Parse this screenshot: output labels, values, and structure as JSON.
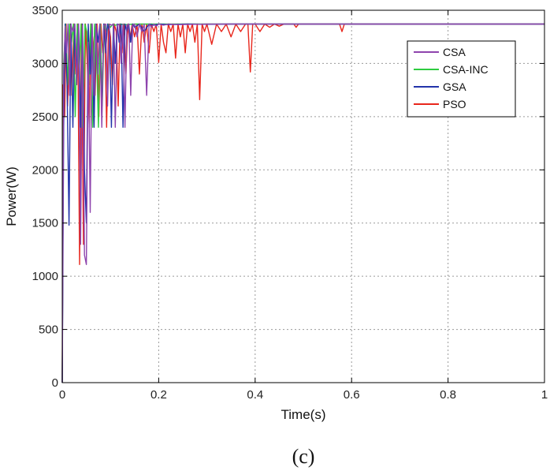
{
  "colors": {
    "CSA": "#8e44ad",
    "CSA-INC": "#2ecc40",
    "GSA": "#2233aa",
    "PSO": "#e8261c",
    "grid": "#9a9a9a",
    "axis": "#000000"
  },
  "chart_data": {
    "type": "line",
    "title": "",
    "xlabel": "Time(s)",
    "ylabel": "Power(W)",
    "caption": "(c)",
    "xlim": [
      0,
      1
    ],
    "ylim": [
      0,
      3500
    ],
    "xticks": [
      0,
      0.2,
      0.4,
      0.6,
      0.8,
      1
    ],
    "xtick_labels": [
      "0",
      "0.2",
      "0.4",
      "0.6",
      "0.8",
      "1"
    ],
    "yticks": [
      0,
      500,
      1000,
      1500,
      2000,
      2500,
      3000,
      3500
    ],
    "ytick_labels": [
      "0",
      "500",
      "1000",
      "1500",
      "2000",
      "2500",
      "3000",
      "3500"
    ],
    "grid": true,
    "legend_position": "top-right",
    "series": [
      {
        "name": "CSA",
        "x": [
          0,
          0.003,
          0.006,
          0.009,
          0.012,
          0.015,
          0.018,
          0.022,
          0.026,
          0.03,
          0.034,
          0.038,
          0.042,
          0.046,
          0.05,
          0.054,
          0.058,
          0.062,
          0.066,
          0.07,
          0.074,
          0.078,
          0.082,
          0.086,
          0.09,
          0.094,
          0.098,
          0.102,
          0.106,
          0.11,
          0.114,
          0.118,
          0.122,
          0.126,
          0.13,
          0.134,
          0.138,
          0.142,
          0.146,
          0.15,
          0.155,
          0.16,
          0.165,
          0.17,
          0.175,
          0.18,
          0.185,
          0.19,
          0.195,
          0.2,
          0.21,
          0.22,
          0.24,
          0.3,
          1
        ],
        "y": [
          0,
          2900,
          3350,
          3100,
          3370,
          2700,
          3360,
          3300,
          3370,
          2800,
          3370,
          1300,
          3360,
          1200,
          1110,
          3200,
          1600,
          3370,
          2700,
          3360,
          2900,
          3370,
          2400,
          3360,
          3370,
          2600,
          3370,
          3360,
          3370,
          2400,
          3360,
          3370,
          3000,
          3370,
          2400,
          3360,
          3370,
          2700,
          3360,
          3370,
          3250,
          3370,
          3300,
          3370,
          2700,
          3370,
          3340,
          3370,
          3350,
          3370,
          3360,
          3370,
          3365,
          3370,
          3370
        ]
      },
      {
        "name": "CSA-INC",
        "x": [
          0,
          0.003,
          0.007,
          0.011,
          0.015,
          0.019,
          0.023,
          0.027,
          0.031,
          0.035,
          0.039,
          0.043,
          0.047,
          0.051,
          0.055,
          0.059,
          0.063,
          0.067,
          0.071,
          0.075,
          0.079,
          0.083,
          0.087,
          0.091,
          0.095,
          0.1,
          0.105,
          0.11,
          0.12,
          0.13,
          0.15,
          1
        ],
        "y": [
          0,
          3000,
          3370,
          2800,
          3370,
          3200,
          3370,
          2500,
          3370,
          2900,
          3370,
          2400,
          3370,
          3300,
          2800,
          3370,
          2400,
          3370,
          3100,
          2400,
          3370,
          2600,
          3370,
          3300,
          3370,
          3340,
          3370,
          3360,
          3370,
          3365,
          3370,
          3370
        ]
      },
      {
        "name": "GSA",
        "x": [
          0,
          0.003,
          0.006,
          0.01,
          0.014,
          0.018,
          0.022,
          0.026,
          0.03,
          0.034,
          0.038,
          0.042,
          0.046,
          0.05,
          0.054,
          0.058,
          0.062,
          0.066,
          0.07,
          0.074,
          0.078,
          0.082,
          0.086,
          0.09,
          0.094,
          0.098,
          0.102,
          0.106,
          0.11,
          0.114,
          0.118,
          0.122,
          0.126,
          0.13,
          0.134,
          0.138,
          0.142,
          0.146,
          0.15,
          0.16,
          0.17,
          0.18,
          0.19,
          0.2,
          0.22,
          0.26,
          0.3,
          0.35,
          1
        ],
        "y": [
          0,
          2400,
          3370,
          2800,
          1480,
          3370,
          2400,
          3370,
          2900,
          3370,
          2400,
          3370,
          2000,
          1500,
          3370,
          2900,
          3370,
          2400,
          3370,
          3200,
          3370,
          2500,
          3370,
          3100,
          3370,
          3300,
          2400,
          3370,
          3000,
          3370,
          3200,
          3370,
          2400,
          3370,
          3300,
          3370,
          3200,
          3370,
          3340,
          3370,
          3300,
          3370,
          3360,
          3370,
          3365,
          3370,
          3368,
          3370,
          3370
        ]
      },
      {
        "name": "PSO",
        "x": [
          0,
          0.002,
          0.005,
          0.008,
          0.011,
          0.014,
          0.017,
          0.02,
          0.024,
          0.028,
          0.032,
          0.036,
          0.04,
          0.044,
          0.048,
          0.052,
          0.056,
          0.06,
          0.064,
          0.068,
          0.072,
          0.076,
          0.08,
          0.084,
          0.088,
          0.092,
          0.096,
          0.1,
          0.104,
          0.108,
          0.112,
          0.116,
          0.12,
          0.124,
          0.128,
          0.132,
          0.136,
          0.14,
          0.145,
          0.15,
          0.155,
          0.16,
          0.165,
          0.17,
          0.175,
          0.18,
          0.185,
          0.19,
          0.195,
          0.2,
          0.205,
          0.21,
          0.215,
          0.22,
          0.225,
          0.23,
          0.235,
          0.24,
          0.245,
          0.25,
          0.255,
          0.26,
          0.265,
          0.27,
          0.275,
          0.28,
          0.285,
          0.29,
          0.295,
          0.3,
          0.31,
          0.32,
          0.33,
          0.34,
          0.35,
          0.36,
          0.37,
          0.38,
          0.385,
          0.39,
          0.395,
          0.4,
          0.41,
          0.42,
          0.43,
          0.44,
          0.45,
          0.46,
          0.47,
          0.48,
          0.485,
          0.49,
          0.5,
          0.52,
          0.54,
          0.56,
          0.575,
          0.58,
          0.585,
          0.59,
          0.6,
          0.65,
          0.7,
          1
        ],
        "y": [
          0,
          2800,
          2500,
          3370,
          2600,
          3000,
          3370,
          2700,
          3370,
          2900,
          3370,
          1110,
          3370,
          1300,
          3370,
          3000,
          2400,
          3370,
          3200,
          2700,
          3370,
          2500,
          3370,
          3100,
          3370,
          2400,
          3370,
          3250,
          2800,
          3370,
          3300,
          2600,
          3370,
          3100,
          3370,
          2900,
          3370,
          3200,
          3370,
          3250,
          3370,
          2900,
          3370,
          3200,
          3370,
          3100,
          3370,
          3300,
          3370,
          3010,
          3370,
          3200,
          3100,
          3370,
          3300,
          3370,
          3050,
          3370,
          3250,
          3370,
          3100,
          3370,
          3300,
          3370,
          3200,
          3370,
          2660,
          3370,
          3300,
          3370,
          3180,
          3370,
          3300,
          3370,
          3250,
          3370,
          3300,
          3370,
          3370,
          2920,
          3370,
          3370,
          3300,
          3370,
          3340,
          3370,
          3350,
          3370,
          3370,
          3370,
          3340,
          3370,
          3370,
          3370,
          3370,
          3370,
          3370,
          3300,
          3370,
          3370,
          3370,
          3370,
          3370,
          3370
        ]
      }
    ]
  }
}
